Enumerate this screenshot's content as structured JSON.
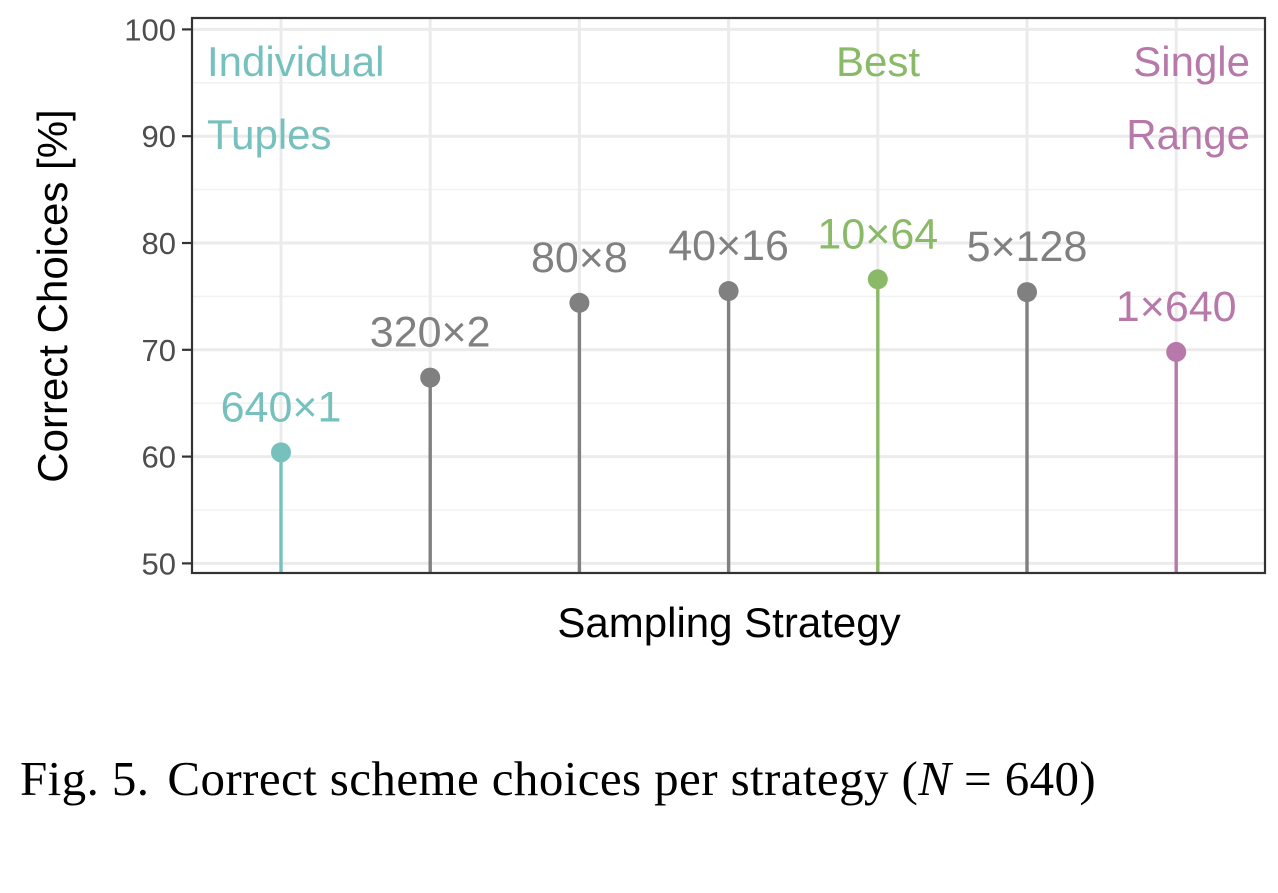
{
  "chart_data": {
    "type": "lollipop",
    "xlabel": "Sampling Strategy",
    "ylabel": "Correct Choices [%]",
    "ylim": [
      50,
      100
    ],
    "yticks": [
      "50",
      "60",
      "70",
      "80",
      "90",
      "100"
    ],
    "grid": true,
    "points": [
      {
        "label": "640×1",
        "value": 60.4,
        "color": "#76c1bd"
      },
      {
        "label": "320×2",
        "value": 67.4,
        "color": "#808080"
      },
      {
        "label": "80×8",
        "value": 74.4,
        "color": "#808080"
      },
      {
        "label": "40×16",
        "value": 75.5,
        "color": "#808080"
      },
      {
        "label": "10×64",
        "value": 76.6,
        "color": "#8aba68"
      },
      {
        "label": "5×128",
        "value": 75.4,
        "color": "#808080"
      },
      {
        "label": "1×640",
        "value": 69.8,
        "color": "#b779aa"
      }
    ],
    "group_labels": {
      "left": {
        "line1": "Individual",
        "line2": "Tuples",
        "color": "#76c1bd"
      },
      "center": {
        "line1": "Best",
        "color": "#8aba68"
      },
      "right": {
        "line1": "Single",
        "line2": "Range",
        "color": "#b779aa"
      }
    }
  },
  "caption": {
    "number": "Fig. 5.",
    "text_before": "Correct scheme choices per strategy (",
    "variable": "N",
    "text_after": " = 640)"
  }
}
